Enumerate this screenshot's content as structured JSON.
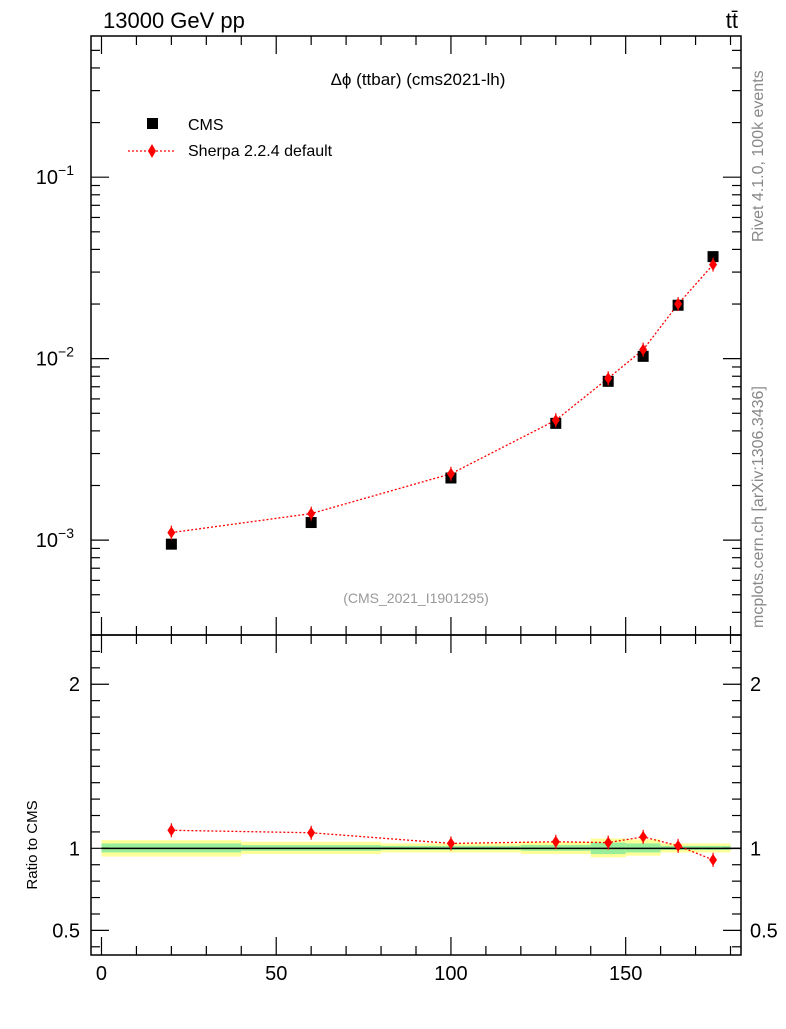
{
  "header": {
    "left": "13000 GeV pp",
    "right": "tt̄"
  },
  "side_labels": {
    "rivet": "Rivet 4.1.0,  100k events",
    "site": "mcplots.cern.ch [arXiv:1306.3436]"
  },
  "chart_data": [
    {
      "type": "scatter",
      "title": "Δϕ (ttbar) (cms2021-lh)",
      "watermark": "(CMS_2021_I1901295)",
      "yscale": "log",
      "xlim": [
        -3,
        183
      ],
      "ylim": [
        0.0003,
        0.6
      ],
      "yticks": [
        {
          "value": 0.001,
          "mant": "10",
          "exp": "−3"
        },
        {
          "value": 0.01,
          "mant": "10",
          "exp": "−2"
        },
        {
          "value": 0.1,
          "mant": "10",
          "exp": "−1"
        }
      ],
      "legend_position": "top-left",
      "legend": [
        {
          "label": "CMS",
          "marker": "square",
          "color": "#000000"
        },
        {
          "label": "Sherpa 2.2.4 default",
          "marker": "diamond",
          "color": "#ff0000"
        }
      ],
      "series": [
        {
          "name": "CMS",
          "x": [
            20,
            60,
            100,
            130,
            145,
            155,
            165,
            175
          ],
          "y": [
            0.00095,
            0.00125,
            0.0022,
            0.0044,
            0.0075,
            0.0103,
            0.0197,
            0.0365
          ],
          "color": "#000000"
        },
        {
          "name": "Sherpa 2.2.4 default",
          "x": [
            20,
            60,
            100,
            130,
            145,
            155,
            165,
            175
          ],
          "y": [
            0.0011,
            0.0014,
            0.00232,
            0.00458,
            0.0078,
            0.0112,
            0.02,
            0.033
          ],
          "color": "#ff0000"
        }
      ]
    },
    {
      "type": "line",
      "ylabel": "Ratio to CMS",
      "xlim": [
        -3,
        183
      ],
      "ylim": [
        0.35,
        2.3
      ],
      "xticks": [
        0,
        50,
        100,
        150
      ],
      "yticks": [
        0.5,
        1,
        2
      ],
      "ratio": {
        "x": [
          20,
          60,
          100,
          130,
          145,
          155,
          165,
          175
        ],
        "y": [
          1.11,
          1.095,
          1.03,
          1.04,
          1.035,
          1.07,
          1.015,
          0.93
        ],
        "color": "#ff0000"
      },
      "bands": [
        {
          "x0": 0,
          "x1": 40,
          "yellow": [
            0.95,
            1.05
          ],
          "green": [
            0.975,
            1.03
          ]
        },
        {
          "x0": 40,
          "x1": 80,
          "yellow": [
            0.965,
            1.04
          ],
          "green": [
            0.985,
            1.02
          ]
        },
        {
          "x0": 80,
          "x1": 120,
          "yellow": [
            0.975,
            1.03
          ],
          "green": [
            0.99,
            1.015
          ]
        },
        {
          "x0": 120,
          "x1": 140,
          "yellow": [
            0.965,
            1.04
          ],
          "green": [
            0.985,
            1.02
          ]
        },
        {
          "x0": 140,
          "x1": 150,
          "yellow": [
            0.945,
            1.06
          ],
          "green": [
            0.965,
            1.035
          ]
        },
        {
          "x0": 150,
          "x1": 160,
          "yellow": [
            0.955,
            1.055
          ],
          "green": [
            0.975,
            1.03
          ]
        },
        {
          "x0": 160,
          "x1": 180,
          "yellow": [
            0.975,
            1.03
          ],
          "green": [
            0.99,
            1.015
          ]
        }
      ]
    }
  ]
}
